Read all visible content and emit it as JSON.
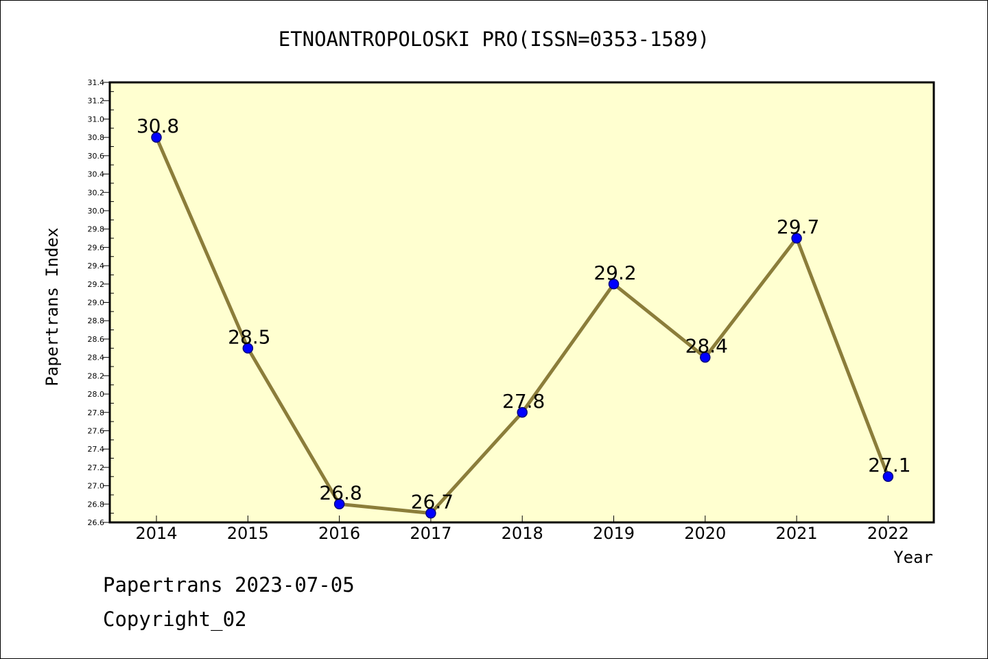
{
  "chart_data": {
    "type": "line",
    "title": "ETNOANTROPOLOSKI PRO(ISSN=0353-1589)",
    "xlabel": "Year",
    "ylabel": "Papertrans Index",
    "categories": [
      "2014",
      "2015",
      "2016",
      "2017",
      "2018",
      "2019",
      "2020",
      "2021",
      "2022"
    ],
    "values": [
      30.8,
      28.5,
      26.8,
      26.7,
      27.8,
      29.2,
      28.4,
      29.7,
      27.1
    ],
    "value_labels": [
      "30.8",
      "28.5",
      "26.8",
      "26.7",
      "27.8",
      "29.2",
      "28.4",
      "29.7",
      "27.1"
    ],
    "ylim": [
      26.6,
      31.4
    ],
    "yticks": [
      "26.6",
      "26.8",
      "27.0",
      "27.2",
      "27.4",
      "27.6",
      "27.8",
      "28.0",
      "28.2",
      "28.4",
      "28.6",
      "28.8",
      "29.0",
      "29.2",
      "29.4",
      "29.6",
      "29.8",
      "30.0",
      "30.2",
      "30.4",
      "30.6",
      "30.8",
      "31.0",
      "31.2",
      "31.4"
    ],
    "grid": false,
    "colors": {
      "plot_background": "#ffffd0",
      "line": "#8b7d3a",
      "marker_fill": "#0000ff",
      "marker_edge": "#000080"
    }
  },
  "footer": {
    "date_line": "Papertrans 2023-07-05",
    "copyright": "Copyright_02"
  }
}
